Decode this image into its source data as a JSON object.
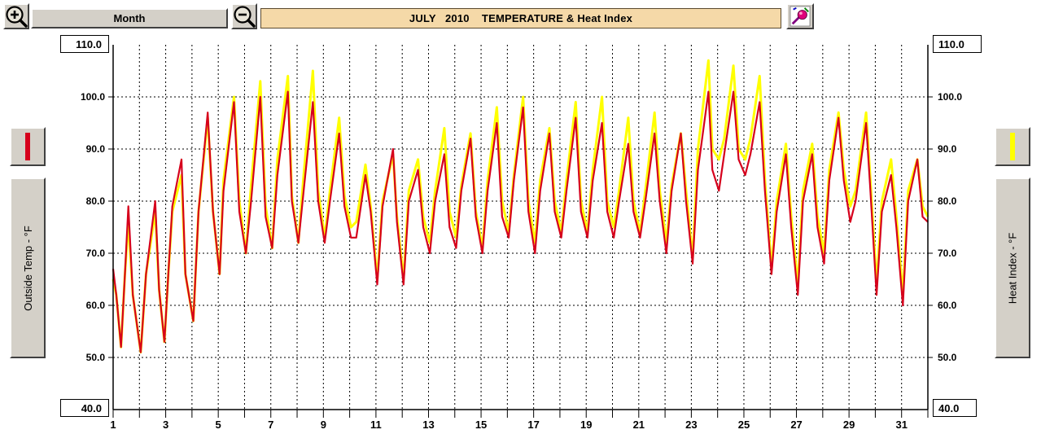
{
  "toolbar": {
    "period_label": "Month",
    "title": "JULY   2010    TEMPERATURE & Heat Index"
  },
  "icons": {
    "zoom_in": "zoom-in-magnifier-icon",
    "zoom_out": "zoom-out-magnifier-icon",
    "export": "paint-palette-export-icon"
  },
  "colors": {
    "outside_temp": "#d6001c",
    "heat_index": "#ffff00",
    "title_bg": "#f5d9a8",
    "button_gray": "#d4d0c8"
  },
  "axes": {
    "left_label": "Outside Temp - °F",
    "right_label": "Heat Index - °F",
    "ymax_left": "110.0",
    "ymin_left": "40.0",
    "ymax_right": "110.0",
    "ymin_right": "40.0"
  },
  "chart_data": {
    "type": "line",
    "title": "JULY   2010    TEMPERATURE & Heat Index",
    "xlabel": "",
    "ylabel": "Outside Temp - °F",
    "y2label": "Heat Index - °F",
    "xlim": [
      1,
      32
    ],
    "ylim": [
      40,
      110
    ],
    "x_ticks": [
      "1",
      "3",
      "5",
      "7",
      "9",
      "11",
      "13",
      "15",
      "17",
      "19",
      "21",
      "23",
      "25",
      "27",
      "29",
      "31"
    ],
    "y_ticks": [
      "50.0",
      "60.0",
      "70.0",
      "80.0",
      "90.0",
      "100.0"
    ],
    "y2_ticks": [
      "50.0",
      "60.0",
      "70.0",
      "80.0",
      "90.0",
      "100.0"
    ],
    "grid": true,
    "series": [
      {
        "name": "Outside Temp - °F",
        "color": "#d6001c",
        "x": [
          1,
          1.12,
          1.3,
          1.45,
          1.58,
          1.75,
          2.05,
          2.25,
          2.6,
          2.75,
          2.95,
          3.1,
          3.25,
          3.6,
          3.75,
          4.05,
          4.25,
          4.6,
          4.8,
          5.05,
          5.2,
          5.6,
          5.8,
          6.05,
          6.25,
          6.6,
          6.8,
          7.05,
          7.25,
          7.65,
          7.8,
          8.05,
          8.25,
          8.6,
          8.8,
          9.05,
          9.25,
          9.6,
          9.8,
          10.05,
          10.25,
          10.6,
          10.8,
          11.05,
          11.25,
          11.65,
          11.8,
          12.05,
          12.25,
          12.6,
          12.8,
          13.05,
          13.25,
          13.6,
          13.8,
          14.05,
          14.25,
          14.6,
          14.8,
          15.05,
          15.25,
          15.6,
          15.8,
          16.05,
          16.25,
          16.6,
          16.8,
          17.05,
          17.25,
          17.6,
          17.8,
          18.05,
          18.25,
          18.6,
          18.8,
          19.05,
          19.25,
          19.6,
          19.8,
          20.05,
          20.25,
          20.6,
          20.8,
          21.05,
          21.25,
          21.6,
          21.8,
          22.05,
          22.25,
          22.6,
          22.8,
          23.05,
          23.25,
          23.65,
          23.8,
          24.05,
          24.25,
          24.6,
          24.8,
          25.05,
          25.25,
          25.6,
          25.8,
          26.05,
          26.25,
          26.6,
          26.8,
          27.05,
          27.25,
          27.6,
          27.8,
          28.05,
          28.25,
          28.6,
          28.8,
          29.05,
          29.25,
          29.65,
          29.8,
          30.05,
          30.25,
          30.6,
          30.8,
          31.05,
          31.25,
          31.6,
          31.8,
          32
        ],
        "values": [
          67,
          62,
          52,
          66,
          79,
          62,
          51,
          66,
          80,
          63,
          53,
          66,
          79,
          88,
          66,
          57,
          78,
          97,
          78,
          66,
          82,
          99,
          78,
          70,
          80,
          100,
          77,
          71,
          85,
          101,
          80,
          72,
          82,
          99,
          80,
          72,
          80,
          93,
          79,
          73,
          73,
          85,
          78,
          64,
          79,
          90,
          76,
          64,
          80,
          86,
          75,
          70,
          80,
          89,
          75,
          71,
          82,
          92,
          77,
          70,
          82,
          95,
          77,
          73,
          84,
          98,
          78,
          70,
          82,
          93,
          78,
          73,
          82,
          96,
          78,
          73,
          84,
          95,
          78,
          73,
          80,
          91,
          78,
          73,
          80,
          93,
          80,
          70,
          82,
          93,
          80,
          68,
          86,
          101,
          86,
          82,
          89,
          101,
          88,
          85,
          89,
          99,
          82,
          66,
          78,
          89,
          75,
          62,
          80,
          89,
          75,
          68,
          84,
          96,
          84,
          76,
          80,
          95,
          83,
          62,
          78,
          85,
          75,
          60,
          80,
          88,
          77,
          76
        ],
        "note": ""
      },
      {
        "name": "Heat Index - °F",
        "color": "#ffff00",
        "x": [
          1,
          1.12,
          1.3,
          1.45,
          1.58,
          1.75,
          2.05,
          2.25,
          2.6,
          2.75,
          2.95,
          3.1,
          3.25,
          3.6,
          3.75,
          4.05,
          4.25,
          4.6,
          4.8,
          5.05,
          5.2,
          5.6,
          5.8,
          6.05,
          6.25,
          6.6,
          6.8,
          7.05,
          7.25,
          7.65,
          7.8,
          8.05,
          8.25,
          8.6,
          8.8,
          9.05,
          9.25,
          9.6,
          9.8,
          10.05,
          10.25,
          10.6,
          10.8,
          11.05,
          11.25,
          11.65,
          11.8,
          12.05,
          12.25,
          12.6,
          12.8,
          13.05,
          13.25,
          13.6,
          13.8,
          14.05,
          14.25,
          14.6,
          14.8,
          15.05,
          15.25,
          15.6,
          15.8,
          16.05,
          16.25,
          16.6,
          16.8,
          17.05,
          17.25,
          17.6,
          17.8,
          18.05,
          18.25,
          18.6,
          18.8,
          19.05,
          19.25,
          19.6,
          19.8,
          20.05,
          20.25,
          20.6,
          20.8,
          21.05,
          21.25,
          21.6,
          21.8,
          22.05,
          22.25,
          22.6,
          22.8,
          23.05,
          23.25,
          23.65,
          23.8,
          24.05,
          24.25,
          24.6,
          24.8,
          25.05,
          25.25,
          25.6,
          25.8,
          26.05,
          26.25,
          26.6,
          26.8,
          27.05,
          27.25,
          27.6,
          27.8,
          28.05,
          28.25,
          28.6,
          28.8,
          29.05,
          29.25,
          29.65,
          29.8,
          30.05,
          30.25,
          30.6,
          30.8,
          31.05,
          31.25,
          31.6,
          31.8,
          32
        ],
        "values": [
          65,
          62,
          52,
          66,
          76,
          62,
          51,
          66,
          78,
          63,
          53,
          66,
          78,
          85,
          66,
          57,
          78,
          96,
          78,
          66,
          84,
          100,
          80,
          70,
          83,
          103,
          79,
          71,
          88,
          104,
          81,
          72,
          85,
          105,
          82,
          73,
          82,
          96,
          81,
          75,
          76,
          87,
          79,
          65,
          80,
          89,
          77,
          65,
          82,
          88,
          77,
          72,
          82,
          94,
          78,
          73,
          83,
          93,
          78,
          71,
          84,
          98,
          80,
          74,
          85,
          100,
          80,
          72,
          84,
          94,
          80,
          74,
          84,
          99,
          80,
          74,
          86,
          100,
          80,
          75,
          82,
          96,
          80,
          74,
          82,
          97,
          82,
          72,
          83,
          93,
          82,
          69,
          90,
          107,
          90,
          88,
          92,
          106,
          90,
          88,
          92,
          104,
          84,
          67,
          80,
          91,
          77,
          64,
          82,
          91,
          77,
          70,
          86,
          97,
          86,
          79,
          82,
          97,
          85,
          64,
          80,
          88,
          77,
          62,
          82,
          88,
          79,
          77
        ],
        "note": ""
      }
    ]
  }
}
